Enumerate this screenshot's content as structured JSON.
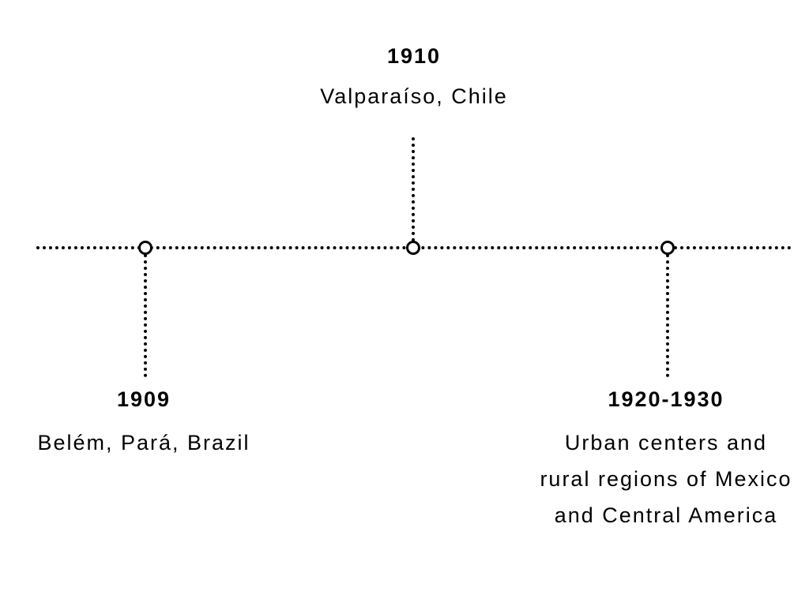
{
  "timeline": {
    "events": [
      {
        "year": "1909",
        "place": "Belém, Pará, Brazil"
      },
      {
        "year": "1910",
        "place": "Valparaíso, Chile"
      },
      {
        "year": "1920-1930",
        "place": "Urban centers and rural regions of Mexico and Central America"
      }
    ]
  }
}
